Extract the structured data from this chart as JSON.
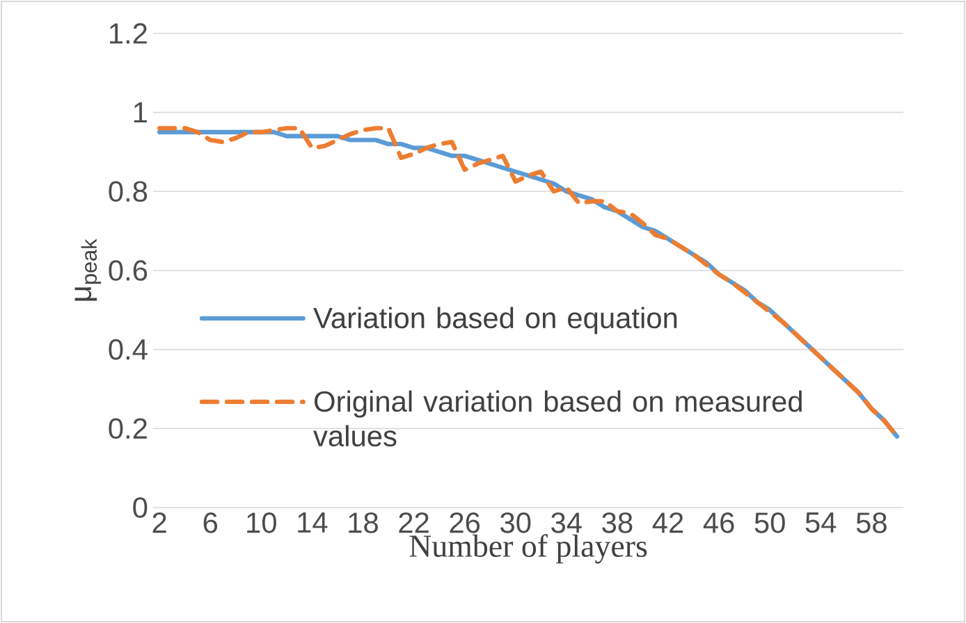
{
  "chart_data": {
    "type": "line",
    "xlabel": "Number of players",
    "ylabel": "μ$_{peak}$",
    "categories": [
      "2",
      null,
      null,
      null,
      "6",
      null,
      null,
      null,
      "10",
      null,
      null,
      null,
      "14",
      null,
      null,
      null,
      "18",
      null,
      null,
      null,
      "22",
      null,
      null,
      null,
      "26",
      null,
      null,
      null,
      "30",
      null,
      null,
      null,
      "34",
      null,
      null,
      null,
      "38",
      null,
      null,
      null,
      "42",
      null,
      null,
      null,
      "46",
      null,
      null,
      null,
      "50",
      null,
      null,
      null,
      "54",
      null,
      null,
      null,
      "58",
      null,
      null
    ],
    "series": [
      {
        "name": "Variation based on equation",
        "color": "#5b9bd5",
        "line_style": "solid",
        "values": [
          0.95,
          0.95,
          0.95,
          0.95,
          0.95,
          0.95,
          0.95,
          0.95,
          0.95,
          0.95,
          0.94,
          0.94,
          0.94,
          0.94,
          0.94,
          0.93,
          0.93,
          0.93,
          0.92,
          0.92,
          0.91,
          0.91,
          0.9,
          0.89,
          0.89,
          0.88,
          0.87,
          0.86,
          0.85,
          0.84,
          0.83,
          0.82,
          0.8,
          0.79,
          0.78,
          0.76,
          0.75,
          0.73,
          0.71,
          0.7,
          0.68,
          0.66,
          0.64,
          0.62,
          0.59,
          0.57,
          0.55,
          0.52,
          0.5,
          0.47,
          0.44,
          0.41,
          0.38,
          0.35,
          0.32,
          0.29,
          0.25,
          0.22,
          0.18
        ]
      },
      {
        "name": "Original variation based on measured values",
        "color": "#ed7d31",
        "line_style": "dashed",
        "values": [
          0.96,
          0.96,
          0.96,
          0.95,
          0.93,
          0.925,
          0.935,
          0.95,
          0.95,
          0.955,
          0.96,
          0.96,
          0.91,
          0.915,
          0.93,
          0.945,
          0.955,
          0.96,
          0.96,
          0.885,
          0.895,
          0.91,
          0.92,
          0.925,
          0.855,
          0.87,
          0.88,
          0.89,
          0.825,
          0.84,
          0.85,
          0.8,
          0.81,
          0.77,
          0.775,
          0.775,
          0.75,
          0.745,
          0.72,
          0.69,
          0.68,
          0.66,
          0.64,
          0.615,
          0.59,
          0.57,
          0.545,
          0.52,
          0.495,
          0.47,
          0.44,
          0.41,
          0.38,
          0.35,
          0.32,
          0.29,
          0.25,
          0.22,
          0.18
        ]
      }
    ],
    "ylim": [
      0,
      1.2
    ],
    "yticks": [
      0,
      0.2,
      0.4,
      0.6,
      0.8,
      1,
      1.2
    ],
    "grid": "y",
    "legend": "left",
    "marker": "none"
  }
}
